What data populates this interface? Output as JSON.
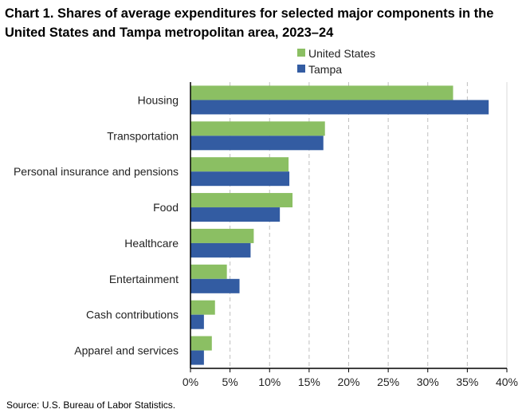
{
  "chart_data": {
    "type": "bar",
    "orientation": "horizontal",
    "title": "Chart 1. Shares of average expenditures for selected major components in the United States and Tampa metropolitan area, 2023–24",
    "source": "Source: U.S. Bureau of Labor Statistics.",
    "categories": [
      "Housing",
      "Transportation",
      "Personal insurance and pensions",
      "Food",
      "Healthcare",
      "Entertainment",
      "Cash contributions",
      "Apparel and services"
    ],
    "series": [
      {
        "name": "United States",
        "color": "#8BBF63",
        "values": [
          33.2,
          17.0,
          12.4,
          12.9,
          8.0,
          4.6,
          3.1,
          2.7
        ]
      },
      {
        "name": "Tampa",
        "color": "#335CA2",
        "values": [
          37.7,
          16.8,
          12.5,
          11.3,
          7.6,
          6.2,
          1.7,
          1.7
        ]
      }
    ],
    "xlim": [
      0,
      40
    ],
    "xticks": [
      "0%",
      "5%",
      "10%",
      "15%",
      "20%",
      "25%",
      "30%",
      "35%",
      "40%"
    ],
    "grid": "vertical dashed",
    "legend": "top-right"
  }
}
